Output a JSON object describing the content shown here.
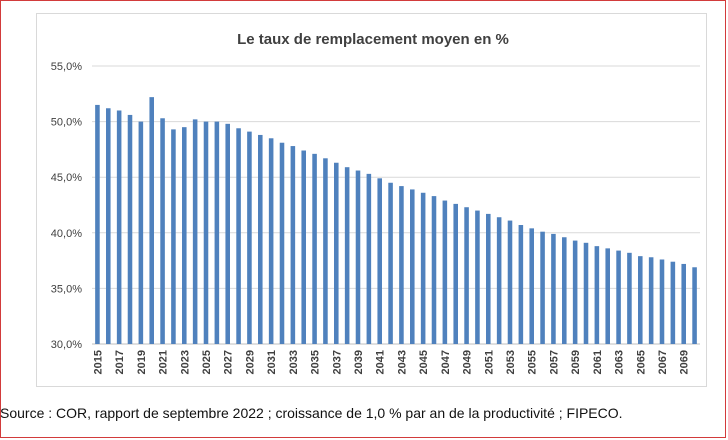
{
  "source": "Source : COR, rapport de septembre 2022 ; croissance de 1,0 % par an de la productivité ; FIPECO.",
  "chart_data": {
    "type": "bar",
    "title": "Le taux de remplacement moyen en %",
    "xlabel": "",
    "ylabel": "",
    "ylim": [
      30,
      55
    ],
    "yticks": [
      30,
      35,
      40,
      45,
      50,
      55
    ],
    "ytick_labels": [
      "30,0%",
      "35,0%",
      "40,0%",
      "45,0%",
      "50,0%",
      "55,0%"
    ],
    "grid": true,
    "bar_color": "#4f81bd",
    "categories": [
      "2015",
      "2016",
      "2017",
      "2018",
      "2019",
      "2020",
      "2021",
      "2022",
      "2023",
      "2024",
      "2025",
      "2026",
      "2027",
      "2028",
      "2029",
      "2030",
      "2031",
      "2032",
      "2033",
      "2034",
      "2035",
      "2036",
      "2037",
      "2038",
      "2039",
      "2040",
      "2041",
      "2042",
      "2043",
      "2044",
      "2045",
      "2046",
      "2047",
      "2048",
      "2049",
      "2050",
      "2051",
      "2052",
      "2053",
      "2054",
      "2055",
      "2056",
      "2057",
      "2058",
      "2059",
      "2060",
      "2061",
      "2062",
      "2063",
      "2064",
      "2065",
      "2066",
      "2067",
      "2068",
      "2069",
      "2070"
    ],
    "xtick_labels": [
      "2015",
      "2017",
      "2019",
      "2021",
      "2023",
      "2025",
      "2027",
      "2029",
      "2031",
      "2033",
      "2035",
      "2037",
      "2039",
      "2041",
      "2043",
      "2045",
      "2047",
      "2049",
      "2051",
      "2053",
      "2055",
      "2057",
      "2059",
      "2061",
      "2063",
      "2065",
      "2067",
      "2069"
    ],
    "values": [
      51.5,
      51.2,
      51.0,
      50.6,
      50.0,
      52.2,
      50.3,
      49.3,
      49.5,
      50.2,
      50.0,
      50.0,
      49.8,
      49.4,
      49.1,
      48.8,
      48.5,
      48.1,
      47.8,
      47.4,
      47.1,
      46.7,
      46.3,
      45.9,
      45.6,
      45.3,
      44.9,
      44.5,
      44.2,
      43.9,
      43.6,
      43.3,
      42.9,
      42.6,
      42.3,
      42.0,
      41.7,
      41.4,
      41.1,
      40.7,
      40.4,
      40.1,
      39.9,
      39.6,
      39.3,
      39.1,
      38.8,
      38.6,
      38.4,
      38.2,
      37.9,
      37.8,
      37.6,
      37.4,
      37.2,
      36.9
    ]
  }
}
